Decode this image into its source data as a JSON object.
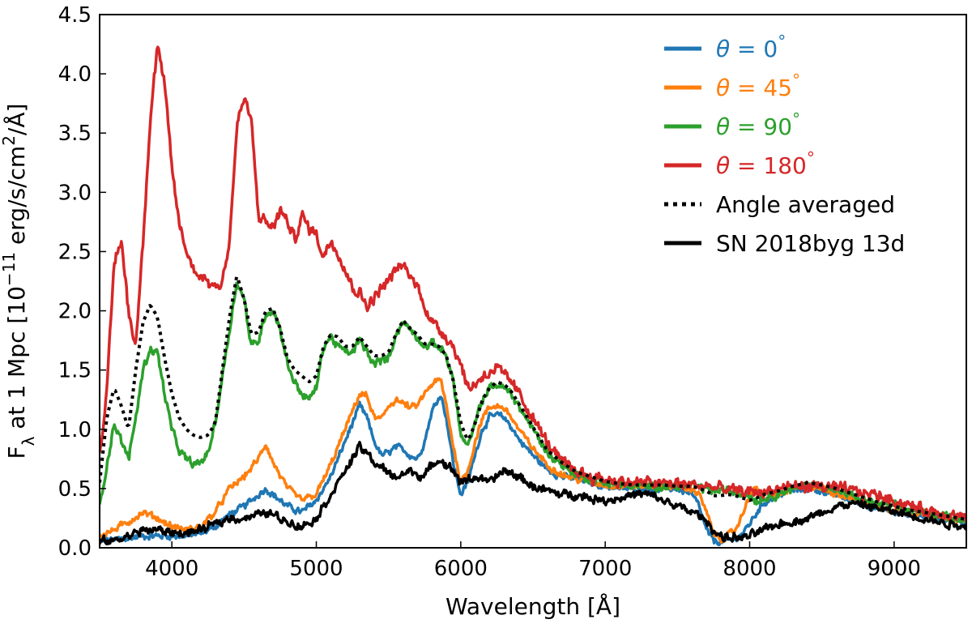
{
  "chart_data": {
    "type": "line",
    "xlabel": "Wavelength [Å]",
    "ylabel": "F_λ at 1 Mpc [10^-11 erg/s/cm^2/Å]",
    "ylabel_parts": {
      "main": "F",
      "sub": "λ",
      "mid": " at 1 Mpc [10",
      "sup1": "−11",
      "mid2": " erg/s/cm",
      "sup2": "2",
      "end": "/Å]"
    },
    "xlim": [
      3500,
      9500
    ],
    "ylim": [
      0.0,
      4.5
    ],
    "xticks": [
      4000,
      5000,
      6000,
      7000,
      8000,
      9000
    ],
    "yticks": [
      0.0,
      0.5,
      1.0,
      1.5,
      2.0,
      2.5,
      3.0,
      3.5,
      4.0,
      4.5
    ],
    "ytick_labels": [
      "0.0",
      "0.5",
      "1.0",
      "1.5",
      "2.0",
      "2.5",
      "3.0",
      "3.5",
      "4.0",
      "4.5"
    ],
    "legend_position": "top-right",
    "series": [
      {
        "name": "θ = 0°",
        "legend_var": "θ",
        "legend_eq": " = 0",
        "legend_deg": "°",
        "color": "#1f77b4",
        "style": "solid",
        "noise": 0.02,
        "x": [
          3500,
          3600,
          3700,
          3800,
          3900,
          4000,
          4100,
          4200,
          4300,
          4400,
          4500,
          4600,
          4650,
          4700,
          4800,
          4900,
          5000,
          5100,
          5200,
          5300,
          5350,
          5400,
          5450,
          5500,
          5550,
          5600,
          5650,
          5700,
          5750,
          5800,
          5860,
          5900,
          5950,
          6000,
          6050,
          6100,
          6150,
          6200,
          6250,
          6300,
          6350,
          6400,
          6500,
          6600,
          6700,
          6800,
          6900,
          7000,
          7100,
          7200,
          7300,
          7400,
          7500,
          7600,
          7650,
          7700,
          7750,
          7800,
          7850,
          7900,
          7950,
          8000,
          8050,
          8100,
          8200,
          8300,
          8400,
          8500,
          8600,
          8700,
          8800,
          8900,
          9000,
          9100,
          9200,
          9300,
          9400,
          9500
        ],
        "y": [
          0.05,
          0.07,
          0.08,
          0.1,
          0.1,
          0.1,
          0.1,
          0.12,
          0.18,
          0.28,
          0.35,
          0.45,
          0.5,
          0.45,
          0.35,
          0.3,
          0.4,
          0.6,
          0.9,
          1.2,
          1.1,
          0.9,
          0.78,
          0.8,
          0.85,
          0.83,
          0.78,
          0.75,
          0.9,
          1.15,
          1.3,
          1.1,
          0.7,
          0.45,
          0.55,
          0.8,
          1.0,
          1.1,
          1.12,
          1.1,
          1.02,
          0.92,
          0.78,
          0.66,
          0.6,
          0.58,
          0.55,
          0.52,
          0.5,
          0.5,
          0.5,
          0.5,
          0.5,
          0.45,
          0.35,
          0.15,
          0.06,
          0.05,
          0.06,
          0.07,
          0.12,
          0.2,
          0.3,
          0.38,
          0.45,
          0.48,
          0.5,
          0.48,
          0.45,
          0.4,
          0.36,
          0.33,
          0.3,
          0.28,
          0.27,
          0.25,
          0.23,
          0.22
        ]
      },
      {
        "name": "θ = 45°",
        "legend_var": "θ",
        "legend_eq": " = 45",
        "legend_deg": "°",
        "color": "#ff7f0e",
        "style": "solid",
        "noise": 0.02,
        "x": [
          3500,
          3600,
          3700,
          3800,
          3900,
          4000,
          4100,
          4200,
          4300,
          4400,
          4500,
          4600,
          4650,
          4700,
          4800,
          4900,
          5000,
          5100,
          5200,
          5300,
          5350,
          5400,
          5450,
          5500,
          5550,
          5600,
          5650,
          5700,
          5750,
          5800,
          5860,
          5900,
          5950,
          6000,
          6050,
          6100,
          6150,
          6200,
          6250,
          6300,
          6350,
          6400,
          6500,
          6600,
          6700,
          6800,
          6900,
          7000,
          7100,
          7200,
          7300,
          7400,
          7500,
          7600,
          7650,
          7700,
          7750,
          7800,
          7850,
          7900,
          7950,
          8000,
          8050,
          8100,
          8200,
          8300,
          8400,
          8500,
          8600,
          8700,
          8800,
          8900,
          9000,
          9100,
          9200,
          9300,
          9400,
          9500
        ],
        "y": [
          0.1,
          0.15,
          0.22,
          0.3,
          0.25,
          0.18,
          0.15,
          0.18,
          0.3,
          0.5,
          0.6,
          0.75,
          0.88,
          0.72,
          0.5,
          0.4,
          0.45,
          0.7,
          1.0,
          1.3,
          1.28,
          1.1,
          1.08,
          1.2,
          1.25,
          1.22,
          1.18,
          1.2,
          1.3,
          1.38,
          1.42,
          1.2,
          0.85,
          0.55,
          0.65,
          0.9,
          1.1,
          1.18,
          1.2,
          1.18,
          1.1,
          1.0,
          0.84,
          0.7,
          0.62,
          0.58,
          0.56,
          0.53,
          0.52,
          0.52,
          0.52,
          0.52,
          0.52,
          0.5,
          0.45,
          0.3,
          0.12,
          0.08,
          0.1,
          0.15,
          0.28,
          0.45,
          0.5,
          0.45,
          0.45,
          0.5,
          0.52,
          0.5,
          0.46,
          0.42,
          0.38,
          0.35,
          0.32,
          0.3,
          0.28,
          0.26,
          0.24,
          0.23
        ]
      },
      {
        "name": "θ = 90°",
        "legend_var": "θ",
        "legend_eq": " = 90",
        "legend_deg": "°",
        "color": "#2ca02c",
        "style": "solid",
        "noise": 0.025,
        "x": [
          3500,
          3550,
          3600,
          3650,
          3700,
          3750,
          3800,
          3850,
          3900,
          3950,
          4000,
          4050,
          4100,
          4150,
          4200,
          4250,
          4300,
          4350,
          4400,
          4450,
          4500,
          4550,
          4600,
          4650,
          4700,
          4750,
          4800,
          4850,
          4900,
          4950,
          5000,
          5050,
          5100,
          5150,
          5200,
          5250,
          5300,
          5350,
          5400,
          5450,
          5500,
          5550,
          5600,
          5650,
          5700,
          5750,
          5800,
          5850,
          5900,
          5950,
          6000,
          6050,
          6100,
          6150,
          6200,
          6250,
          6300,
          6350,
          6400,
          6500,
          6600,
          6700,
          6800,
          6900,
          7000,
          7100,
          7200,
          7300,
          7400,
          7500,
          7600,
          7700,
          7750,
          7800,
          7850,
          7900,
          7950,
          8000,
          8050,
          8100,
          8200,
          8300,
          8400,
          8500,
          8600,
          8700,
          8800,
          8900,
          9000,
          9100,
          9200,
          9300,
          9400,
          9500
        ],
        "y": [
          0.35,
          0.7,
          1.05,
          0.9,
          0.75,
          1.1,
          1.5,
          1.68,
          1.65,
          1.3,
          1.0,
          0.82,
          0.75,
          0.7,
          0.72,
          0.8,
          1.05,
          1.45,
          1.85,
          2.25,
          2.1,
          1.7,
          1.75,
          1.98,
          2.0,
          1.85,
          1.55,
          1.4,
          1.3,
          1.25,
          1.35,
          1.7,
          1.78,
          1.7,
          1.65,
          1.65,
          1.75,
          1.65,
          1.55,
          1.58,
          1.6,
          1.8,
          1.9,
          1.85,
          1.78,
          1.7,
          1.72,
          1.7,
          1.62,
          1.4,
          0.95,
          0.85,
          1.05,
          1.25,
          1.35,
          1.38,
          1.35,
          1.3,
          1.2,
          1.0,
          0.8,
          0.7,
          0.62,
          0.58,
          0.55,
          0.53,
          0.52,
          0.52,
          0.52,
          0.52,
          0.52,
          0.5,
          0.48,
          0.48,
          0.48,
          0.47,
          0.46,
          0.44,
          0.4,
          0.42,
          0.46,
          0.5,
          0.53,
          0.52,
          0.48,
          0.44,
          0.4,
          0.37,
          0.35,
          0.32,
          0.3,
          0.28,
          0.26,
          0.24
        ]
      },
      {
        "name": "θ = 180°",
        "legend_var": "θ",
        "legend_eq": " = 180",
        "legend_deg": "°",
        "color": "#d62728",
        "style": "solid",
        "noise": 0.035,
        "x": [
          3500,
          3550,
          3600,
          3650,
          3700,
          3750,
          3800,
          3850,
          3900,
          3950,
          4000,
          4050,
          4100,
          4150,
          4200,
          4250,
          4300,
          4350,
          4400,
          4450,
          4500,
          4550,
          4600,
          4650,
          4700,
          4750,
          4800,
          4850,
          4900,
          4950,
          5000,
          5050,
          5100,
          5150,
          5200,
          5250,
          5300,
          5350,
          5400,
          5450,
          5500,
          5550,
          5600,
          5650,
          5700,
          5750,
          5800,
          5850,
          5900,
          5950,
          6000,
          6050,
          6100,
          6150,
          6200,
          6250,
          6300,
          6350,
          6400,
          6500,
          6600,
          6700,
          6800,
          6900,
          7000,
          7100,
          7200,
          7300,
          7400,
          7500,
          7600,
          7700,
          7800,
          7900,
          8000,
          8100,
          8200,
          8300,
          8400,
          8500,
          8600,
          8700,
          8800,
          8900,
          9000,
          9100,
          9200,
          9300,
          9400,
          9500
        ],
        "y": [
          0.8,
          1.3,
          2.4,
          2.6,
          2.0,
          1.7,
          2.6,
          3.6,
          4.25,
          3.9,
          3.2,
          2.75,
          2.5,
          2.35,
          2.3,
          2.25,
          2.2,
          2.25,
          2.6,
          3.55,
          3.8,
          3.6,
          2.8,
          2.75,
          2.7,
          2.85,
          2.75,
          2.6,
          2.8,
          2.7,
          2.65,
          2.45,
          2.6,
          2.5,
          2.35,
          2.2,
          2.15,
          2.05,
          2.1,
          2.2,
          2.25,
          2.35,
          2.38,
          2.3,
          2.2,
          2.05,
          1.9,
          1.85,
          1.78,
          1.7,
          1.55,
          1.35,
          1.38,
          1.45,
          1.48,
          1.52,
          1.45,
          1.4,
          1.3,
          1.1,
          0.88,
          0.72,
          0.65,
          0.6,
          0.58,
          0.56,
          0.55,
          0.55,
          0.54,
          0.54,
          0.53,
          0.52,
          0.5,
          0.48,
          0.47,
          0.47,
          0.5,
          0.52,
          0.52,
          0.52,
          0.5,
          0.48,
          0.46,
          0.44,
          0.4,
          0.36,
          0.32,
          0.3,
          0.28,
          0.25
        ]
      },
      {
        "name": "Angle averaged",
        "legend_text": "Angle averaged",
        "color": "#000000",
        "style": "dotted",
        "noise": 0,
        "x": [
          3500,
          3550,
          3600,
          3650,
          3700,
          3750,
          3800,
          3850,
          3900,
          3950,
          4000,
          4050,
          4100,
          4150,
          4200,
          4250,
          4300,
          4350,
          4400,
          4450,
          4500,
          4550,
          4600,
          4650,
          4700,
          4750,
          4800,
          4850,
          4900,
          4950,
          5000,
          5050,
          5100,
          5150,
          5200,
          5250,
          5300,
          5350,
          5400,
          5450,
          5500,
          5550,
          5600,
          5650,
          5700,
          5750,
          5800,
          5850,
          5900,
          5950,
          6000,
          6050,
          6100,
          6150,
          6200,
          6250,
          6300,
          6350,
          6400,
          6500,
          6600,
          6700,
          6800,
          6900,
          7000,
          7100,
          7200,
          7300,
          7400,
          7500,
          7600,
          7700,
          7750,
          7800,
          7850,
          7900,
          7950,
          8000,
          8050,
          8100,
          8200,
          8300,
          8400,
          8500,
          8600,
          8700,
          8800,
          8900,
          9000,
          9100,
          9200,
          9300,
          9400,
          9500
        ],
        "y": [
          0.55,
          1.1,
          1.35,
          1.2,
          1.0,
          1.5,
          1.9,
          2.05,
          1.95,
          1.6,
          1.3,
          1.1,
          1.0,
          0.95,
          0.93,
          0.95,
          1.05,
          1.5,
          1.95,
          2.3,
          2.1,
          1.8,
          1.82,
          2.0,
          2.02,
          1.85,
          1.6,
          1.5,
          1.45,
          1.4,
          1.45,
          1.7,
          1.8,
          1.78,
          1.7,
          1.7,
          1.78,
          1.7,
          1.62,
          1.62,
          1.65,
          1.8,
          1.92,
          1.85,
          1.8,
          1.72,
          1.72,
          1.7,
          1.62,
          1.4,
          1.05,
          0.9,
          1.05,
          1.25,
          1.35,
          1.4,
          1.38,
          1.32,
          1.22,
          1.02,
          0.82,
          0.72,
          0.64,
          0.6,
          0.56,
          0.54,
          0.53,
          0.53,
          0.53,
          0.52,
          0.52,
          0.48,
          0.44,
          0.44,
          0.45,
          0.44,
          0.42,
          0.4,
          0.42,
          0.45,
          0.48,
          0.52,
          0.55,
          0.53,
          0.5,
          0.46,
          0.42,
          0.38,
          0.35,
          0.32,
          0.3,
          0.28,
          0.26,
          0.24
        ]
      },
      {
        "name": "SN 2018byg 13d",
        "legend_text": "SN 2018byg 13d",
        "color": "#000000",
        "style": "solid",
        "noise": 0.025,
        "x": [
          3500,
          3600,
          3700,
          3800,
          3900,
          4000,
          4100,
          4200,
          4300,
          4400,
          4500,
          4600,
          4650,
          4700,
          4800,
          4900,
          5000,
          5100,
          5200,
          5300,
          5350,
          5400,
          5450,
          5500,
          5550,
          5600,
          5650,
          5700,
          5750,
          5800,
          5850,
          5900,
          5950,
          6000,
          6100,
          6200,
          6300,
          6400,
          6500,
          6600,
          6700,
          6800,
          6900,
          7000,
          7100,
          7200,
          7300,
          7400,
          7500,
          7600,
          7650,
          7700,
          7750,
          7800,
          7850,
          7900,
          7950,
          8000,
          8100,
          8200,
          8300,
          8400,
          8500,
          8600,
          8700,
          8800,
          8900,
          9000,
          9100,
          9200,
          9300,
          9400,
          9500
        ],
        "y": [
          0.05,
          0.06,
          0.1,
          0.15,
          0.15,
          0.13,
          0.12,
          0.15,
          0.2,
          0.25,
          0.25,
          0.28,
          0.3,
          0.28,
          0.22,
          0.18,
          0.25,
          0.45,
          0.65,
          0.85,
          0.8,
          0.72,
          0.68,
          0.62,
          0.6,
          0.62,
          0.65,
          0.62,
          0.6,
          0.7,
          0.75,
          0.7,
          0.65,
          0.55,
          0.6,
          0.55,
          0.65,
          0.6,
          0.52,
          0.48,
          0.45,
          0.45,
          0.42,
          0.4,
          0.42,
          0.45,
          0.45,
          0.4,
          0.35,
          0.3,
          0.28,
          0.22,
          0.15,
          0.1,
          0.08,
          0.09,
          0.08,
          0.1,
          0.15,
          0.2,
          0.22,
          0.25,
          0.3,
          0.35,
          0.37,
          0.36,
          0.33,
          0.3,
          0.28,
          0.25,
          0.22,
          0.2,
          0.18
        ]
      }
    ]
  }
}
